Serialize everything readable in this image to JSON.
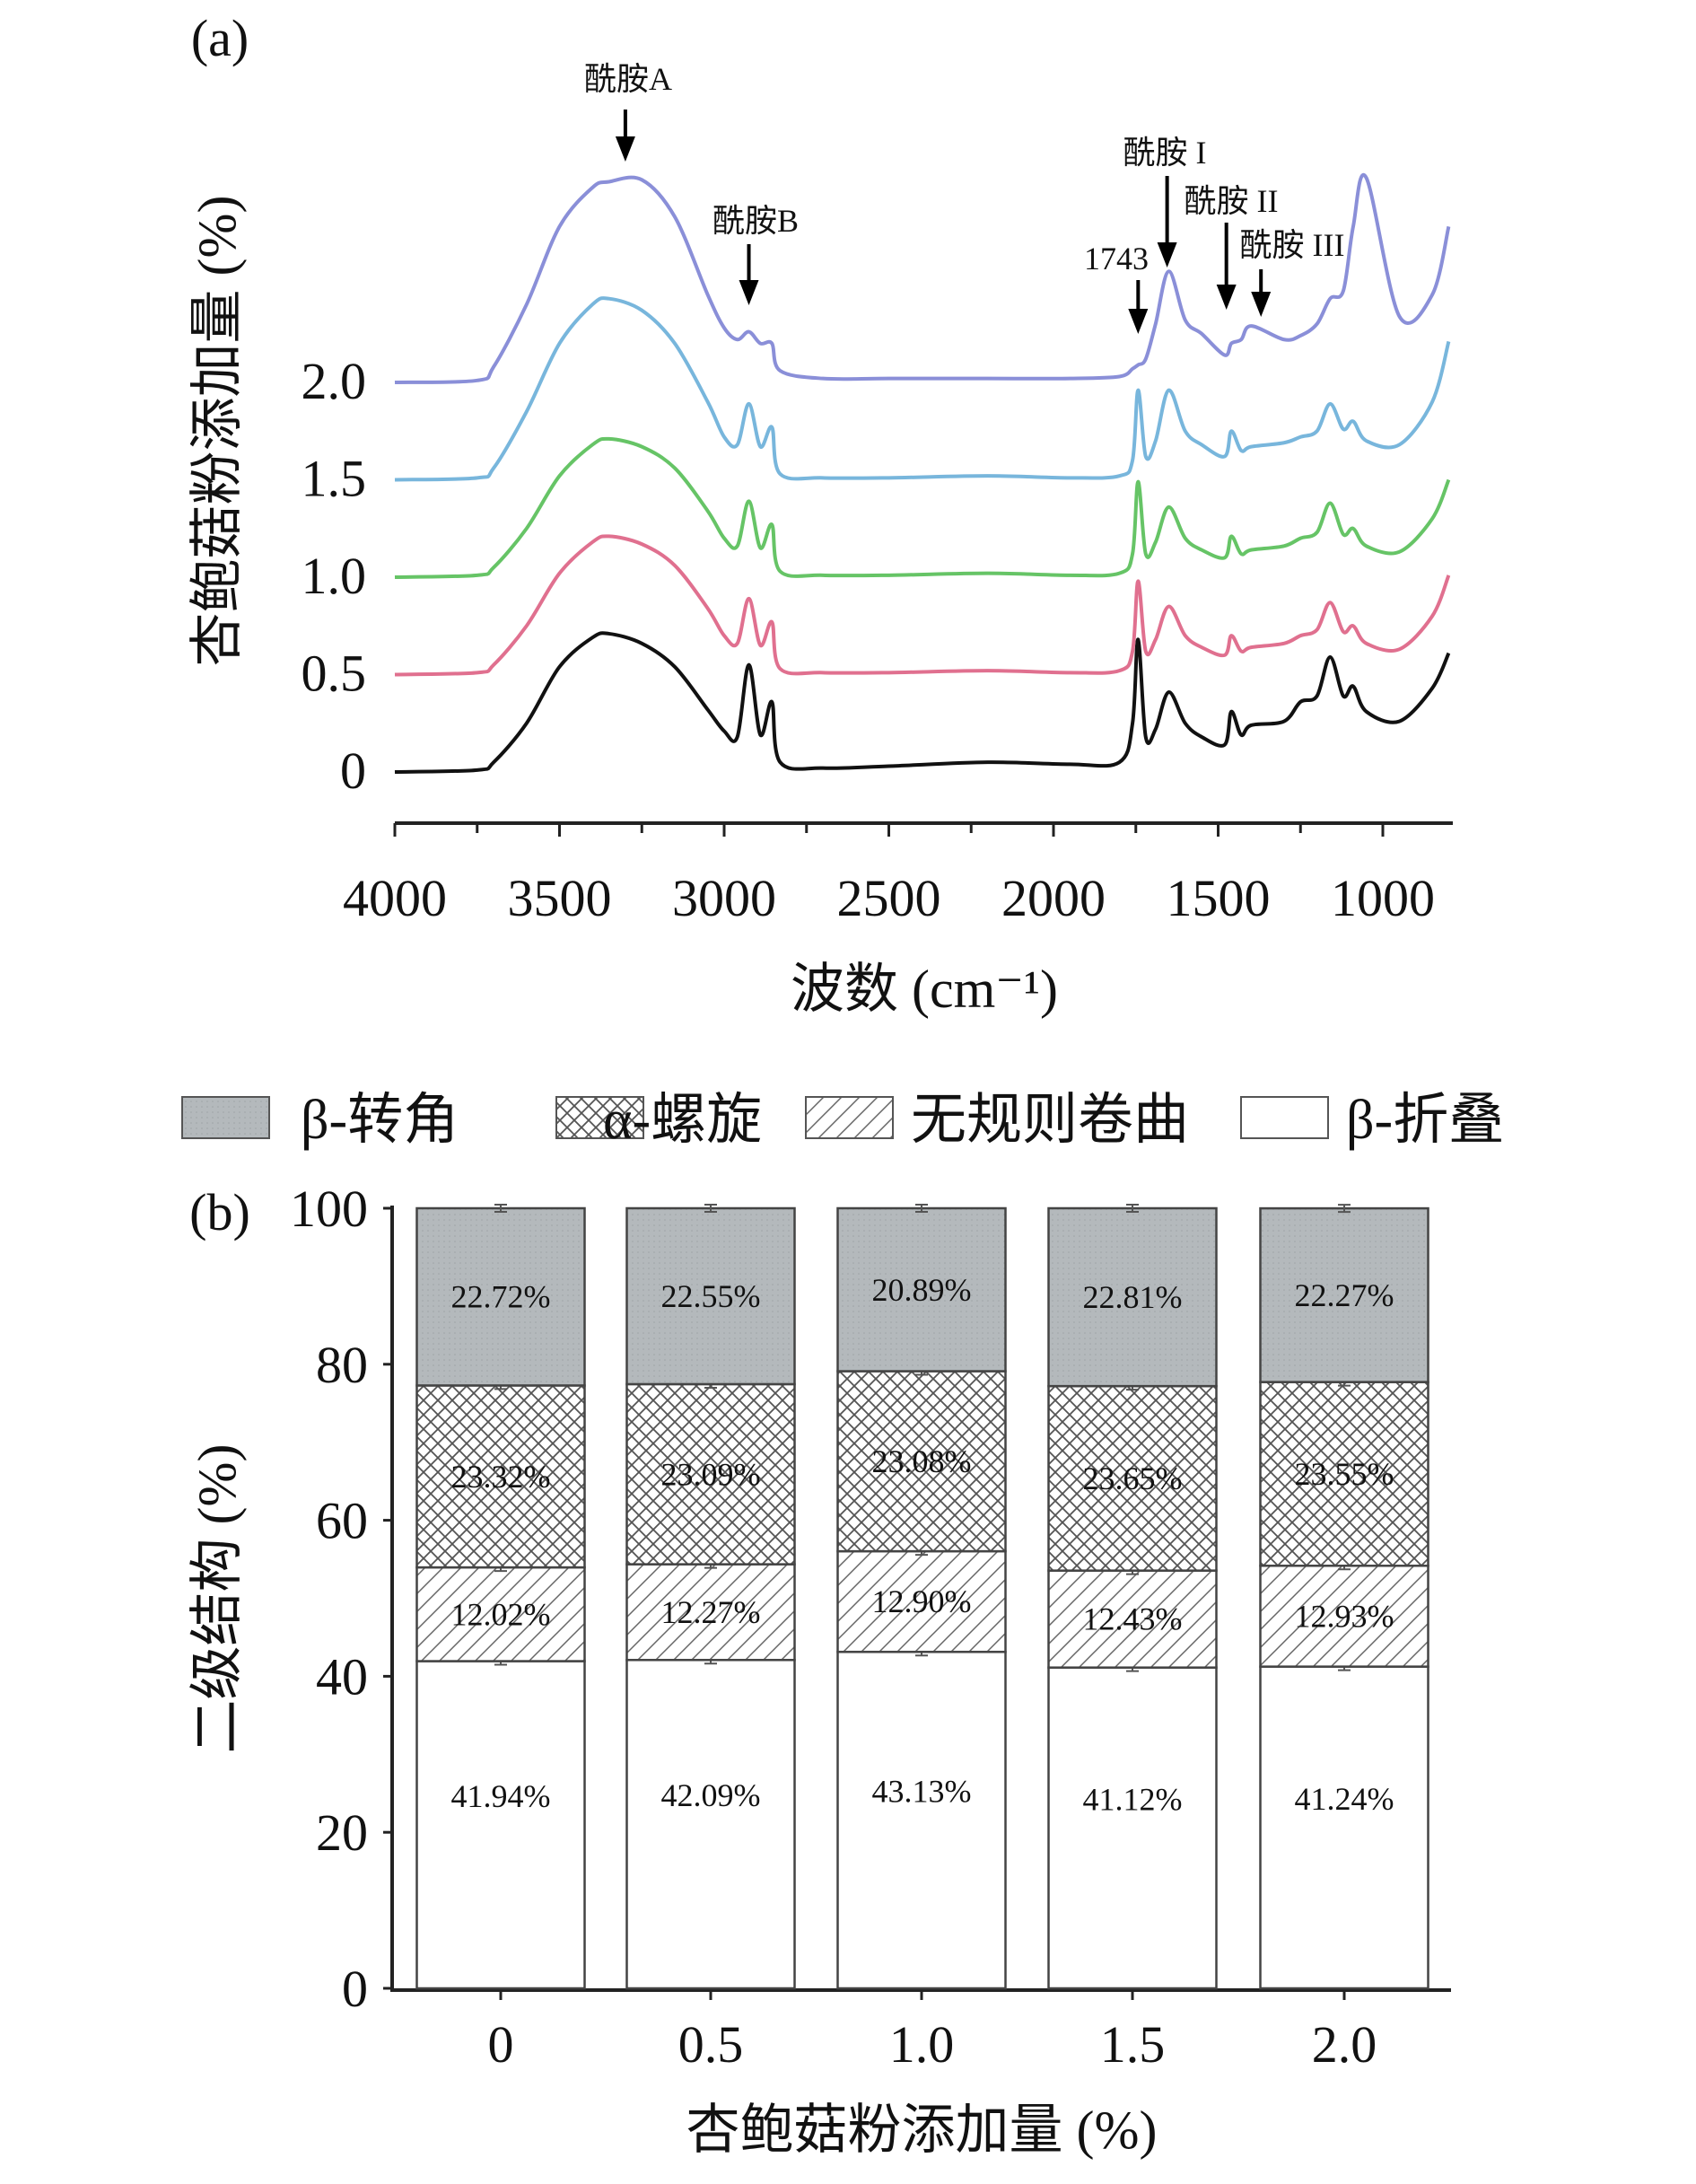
{
  "chart_data": [
    {
      "panel_label": "(a)",
      "type": "line",
      "xlabel": "波数 (cm⁻¹)",
      "ylabel": "杏鲍菇粉添加量 (%)",
      "x_ticks": [
        "4000",
        "3500",
        "3000",
        "2500",
        "2000",
        "1500",
        "1000"
      ],
      "y_ticks": [
        "0",
        "0.5",
        "1.0",
        "1.5",
        "2.0"
      ],
      "xlim": [
        4000,
        800
      ],
      "x_reversed": true,
      "grid": false,
      "x": [
        4000,
        3750,
        3700,
        3600,
        3500,
        3400,
        3350,
        3250,
        3150,
        3050,
        3000,
        2960,
        2925,
        2890,
        2855,
        2830,
        2700,
        2500,
        2200,
        1950,
        1800,
        1760,
        1743,
        1720,
        1690,
        1650,
        1600,
        1550,
        1480,
        1460,
        1430,
        1400,
        1300,
        1250,
        1200,
        1160,
        1120,
        1090,
        1050,
        950,
        850,
        800
      ],
      "series": [
        {
          "offset": 0,
          "color": "#111111",
          "values": [
            0,
            0.01,
            0.05,
            0.25,
            0.54,
            0.69,
            0.71,
            0.66,
            0.54,
            0.32,
            0.21,
            0.18,
            0.55,
            0.19,
            0.36,
            0.05,
            0.02,
            0.03,
            0.05,
            0.04,
            0.05,
            0.25,
            0.68,
            0.18,
            0.22,
            0.41,
            0.25,
            0.18,
            0.14,
            0.31,
            0.19,
            0.24,
            0.26,
            0.36,
            0.39,
            0.59,
            0.39,
            0.44,
            0.31,
            0.26,
            0.43,
            0.61
          ]
        },
        {
          "offset": 0.5,
          "color": "#e0708f",
          "values": [
            0,
            0.01,
            0.05,
            0.25,
            0.52,
            0.68,
            0.71,
            0.67,
            0.56,
            0.34,
            0.2,
            0.16,
            0.39,
            0.15,
            0.27,
            0.03,
            0.01,
            0.01,
            0.02,
            0.01,
            0.02,
            0.12,
            0.48,
            0.12,
            0.18,
            0.35,
            0.2,
            0.14,
            0.1,
            0.2,
            0.12,
            0.14,
            0.16,
            0.2,
            0.23,
            0.37,
            0.22,
            0.25,
            0.16,
            0.13,
            0.3,
            0.51
          ]
        },
        {
          "offset": 1.0,
          "color": "#66c466",
          "values": [
            0,
            0.01,
            0.05,
            0.25,
            0.52,
            0.68,
            0.71,
            0.67,
            0.56,
            0.34,
            0.2,
            0.16,
            0.39,
            0.15,
            0.27,
            0.03,
            0.01,
            0.01,
            0.02,
            0.01,
            0.02,
            0.12,
            0.49,
            0.12,
            0.18,
            0.36,
            0.2,
            0.14,
            0.1,
            0.21,
            0.12,
            0.14,
            0.16,
            0.2,
            0.23,
            0.38,
            0.22,
            0.25,
            0.16,
            0.13,
            0.3,
            0.5
          ]
        },
        {
          "offset": 1.5,
          "color": "#78b6dc",
          "values": [
            0,
            0.01,
            0.06,
            0.35,
            0.7,
            0.9,
            0.93,
            0.87,
            0.7,
            0.4,
            0.22,
            0.18,
            0.39,
            0.17,
            0.27,
            0.03,
            0.01,
            0.01,
            0.02,
            0.01,
            0.02,
            0.1,
            0.46,
            0.12,
            0.2,
            0.46,
            0.25,
            0.18,
            0.12,
            0.25,
            0.15,
            0.17,
            0.19,
            0.22,
            0.25,
            0.39,
            0.26,
            0.3,
            0.2,
            0.18,
            0.4,
            0.71
          ]
        },
        {
          "offset": 2.0,
          "color": "#8a8fd8",
          "values": [
            0,
            0.01,
            0.08,
            0.4,
            0.8,
            1.0,
            1.03,
            1.04,
            0.85,
            0.45,
            0.28,
            0.22,
            0.26,
            0.2,
            0.2,
            0.06,
            0.02,
            0.02,
            0.02,
            0.02,
            0.03,
            0.07,
            0.09,
            0.12,
            0.3,
            0.57,
            0.32,
            0.25,
            0.14,
            0.2,
            0.22,
            0.29,
            0.22,
            0.24,
            0.3,
            0.43,
            0.47,
            0.8,
            1.05,
            0.34,
            0.45,
            0.8
          ]
        }
      ],
      "annotations": [
        {
          "text": "酰胺A",
          "x": 3300
        },
        {
          "text": "酰胺B",
          "x": 2925
        },
        {
          "text": "1743",
          "x": 1743
        },
        {
          "text": "酰胺 I",
          "x": 1655
        },
        {
          "text": "酰胺 II",
          "x": 1475
        },
        {
          "text": "酰胺 III",
          "x": 1370
        }
      ]
    },
    {
      "panel_label": "(b)",
      "type": "bar",
      "stacked": true,
      "xlabel": "杏鲍菇粉添加量 (%)",
      "ylabel": "二级结构 (%)",
      "ylim": [
        0,
        100
      ],
      "y_ticks": [
        "0",
        "20",
        "40",
        "60",
        "80",
        "100"
      ],
      "categories": [
        "0",
        "0.5",
        "1.0",
        "1.5",
        "2.0"
      ],
      "legend_position": "top",
      "series": [
        {
          "name": "β-折叠",
          "pattern": "white",
          "values": [
            41.94,
            42.09,
            43.13,
            41.12,
            41.24
          ],
          "labels": [
            "41.94%",
            "42.09%",
            "43.13%",
            "41.12%",
            "41.24%"
          ]
        },
        {
          "name": "无规则卷曲",
          "pattern": "diagonal",
          "values": [
            12.02,
            12.27,
            12.9,
            12.43,
            12.93
          ],
          "labels": [
            "12.02%",
            "12.27%",
            "12.90%",
            "12.43%",
            "12.93%"
          ]
        },
        {
          "name": "α-螺旋",
          "pattern": "crosshatch",
          "values": [
            23.32,
            23.09,
            23.08,
            23.65,
            23.55
          ],
          "labels": [
            "23.32%",
            "23.09%",
            "23.08%",
            "23.65%",
            "23.55%"
          ]
        },
        {
          "name": "β-转角",
          "pattern": "gray",
          "color": "#b4b9bc",
          "values": [
            22.72,
            22.55,
            20.89,
            22.81,
            22.27
          ],
          "labels": [
            "22.72%",
            "22.55%",
            "20.89%",
            "22.81%",
            "22.27%"
          ]
        }
      ],
      "legend_order": [
        3,
        2,
        1,
        0
      ]
    }
  ]
}
